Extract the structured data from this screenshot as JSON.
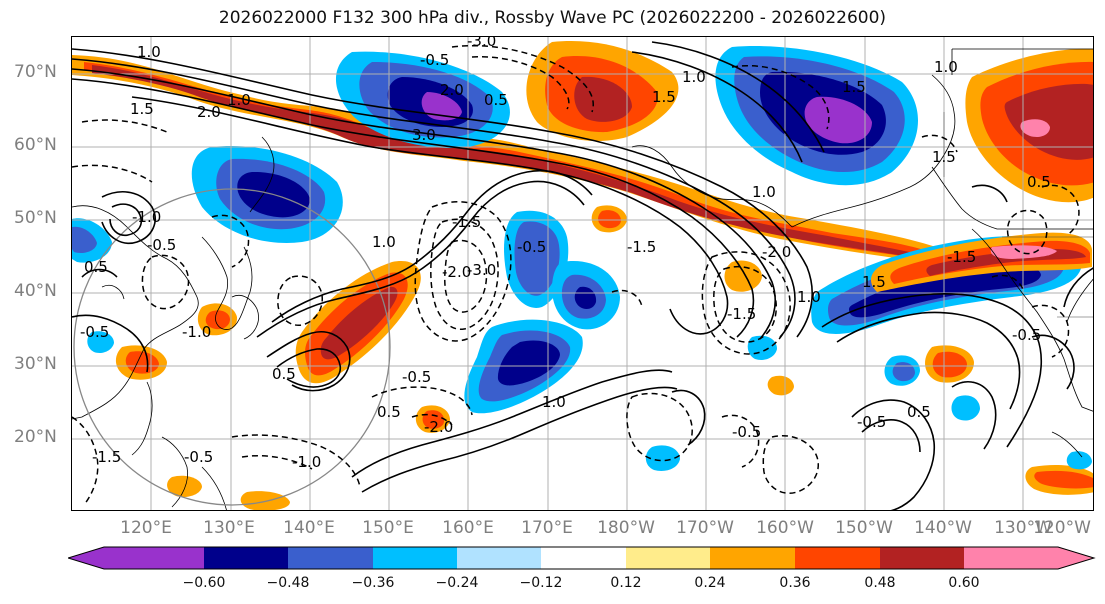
{
  "title": "2026022000 F132 300 hPa div., Rossby Wave PC (2026022200 - 2026022600)",
  "lat_labels": [
    "70°N",
    "60°N",
    "50°N",
    "40°N",
    "30°N",
    "20°N"
  ],
  "lon_labels": [
    "120°E",
    "130°E",
    "140°E",
    "150°E",
    "160°E",
    "170°E",
    "180°W",
    "170°W",
    "160°W",
    "150°W",
    "140°W",
    "130°W",
    "120°W"
  ],
  "colorbar": {
    "ticks": [
      "−0.60",
      "−0.48",
      "−0.36",
      "−0.24",
      "−0.12",
      "0.12",
      "0.24",
      "0.36",
      "0.48",
      "0.60"
    ],
    "colors": [
      "#9932cc",
      "#00008b",
      "#3a5fcd",
      "#00bfff",
      "#b0e2ff",
      "#ffffff",
      "#ffec8b",
      "#ffa500",
      "#ff4500",
      "#b22222",
      "#ff82ab"
    ]
  },
  "contour_labels": {
    "positive": [
      "1.0",
      "1.5",
      "2.0",
      "1.0",
      "1.5",
      "3.0",
      "2.0",
      "1.5",
      "1.0",
      "0.5",
      "1.0",
      "1.5",
      "0.5",
      "0.5",
      "1.0",
      "1.0",
      "1.5",
      "0.5",
      "0.5",
      "0.5",
      "1.0",
      "1.0"
    ],
    "negative": [
      "-0.5",
      "-3.0",
      "-2.0",
      "-0.5",
      "-1.0",
      "-1.5",
      "-2.0",
      "-3.0",
      "-1.5",
      "-0.5",
      "-0.5",
      "-1.0",
      "-1.5",
      "-0.5",
      "-0.5",
      "-1.0",
      "-0.5",
      "-0.5",
      "-0.5",
      "-1.5",
      "-2.0",
      "-1.5"
    ]
  }
}
